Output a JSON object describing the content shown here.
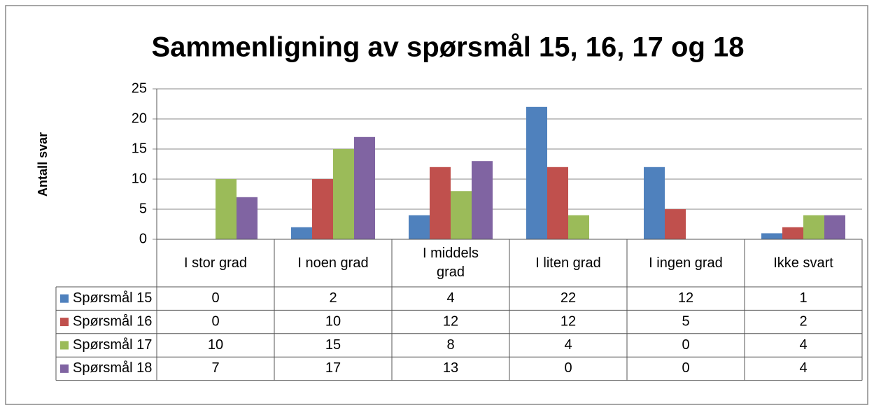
{
  "chart_data": {
    "type": "bar",
    "title": "Sammenligning av spørsmål 15, 16, 17 og 18",
    "y_label": "Antall svar",
    "categories": [
      "I stor grad",
      "I noen grad",
      "I middels grad",
      "I liten grad",
      "I ingen grad",
      "Ikke svart"
    ],
    "series": [
      {
        "name": "Spørsmål 15",
        "color": "#4f81bd",
        "values": [
          0,
          2,
          4,
          22,
          12,
          1
        ]
      },
      {
        "name": "Spørsmål 16",
        "color": "#c0504d",
        "values": [
          0,
          10,
          12,
          12,
          5,
          2
        ]
      },
      {
        "name": "Spørsmål 17",
        "color": "#9bbb59",
        "values": [
          10,
          15,
          8,
          4,
          0,
          4
        ]
      },
      {
        "name": "Spørsmål 18",
        "color": "#8064a2",
        "values": [
          7,
          17,
          13,
          0,
          0,
          4
        ]
      }
    ],
    "ylim": [
      0,
      25
    ],
    "yticks": [
      0,
      5,
      10,
      15,
      20,
      25
    ],
    "grid": true,
    "data_table": true
  }
}
